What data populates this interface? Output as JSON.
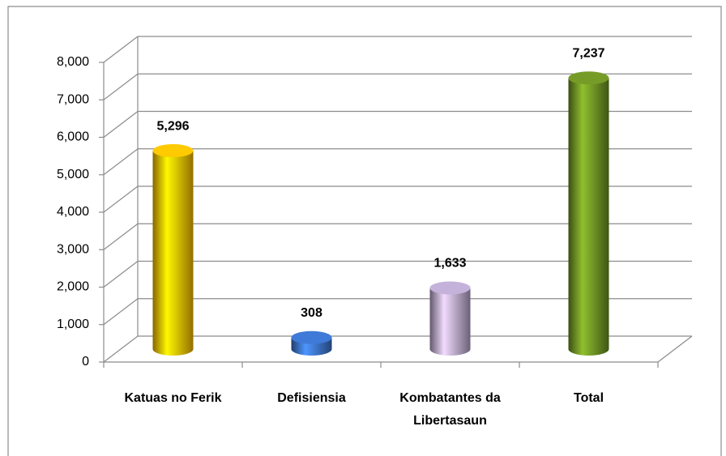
{
  "chart_data": {
    "type": "bar",
    "categories": [
      "Katuas no Ferik",
      "Defisiensia",
      "Kombatantes da Libertasaun",
      "Total"
    ],
    "values": [
      5296,
      308,
      1633,
      7237
    ],
    "value_labels": [
      "5,296",
      "308",
      "1,633",
      "7,237"
    ],
    "colors": [
      "#f5b800",
      "#3a6fc4",
      "#b3a2c7",
      "#6b8e23"
    ],
    "ylim": [
      0,
      8000
    ],
    "yticks": [
      0,
      {
        "value": 1000,
        "label": "1,000"
      },
      {
        "value": 2000,
        "label": "2,000"
      },
      {
        "value": 3000,
        "label": "3,000"
      },
      {
        "value": 4000,
        "label": "4,000"
      },
      {
        "value": 5000,
        "label": "5,000"
      },
      {
        "value": 6000,
        "label": "6,000"
      },
      {
        "value": 7000,
        "label": "7,000"
      },
      {
        "value": 8000,
        "label": "8,000"
      }
    ],
    "grid": true
  }
}
